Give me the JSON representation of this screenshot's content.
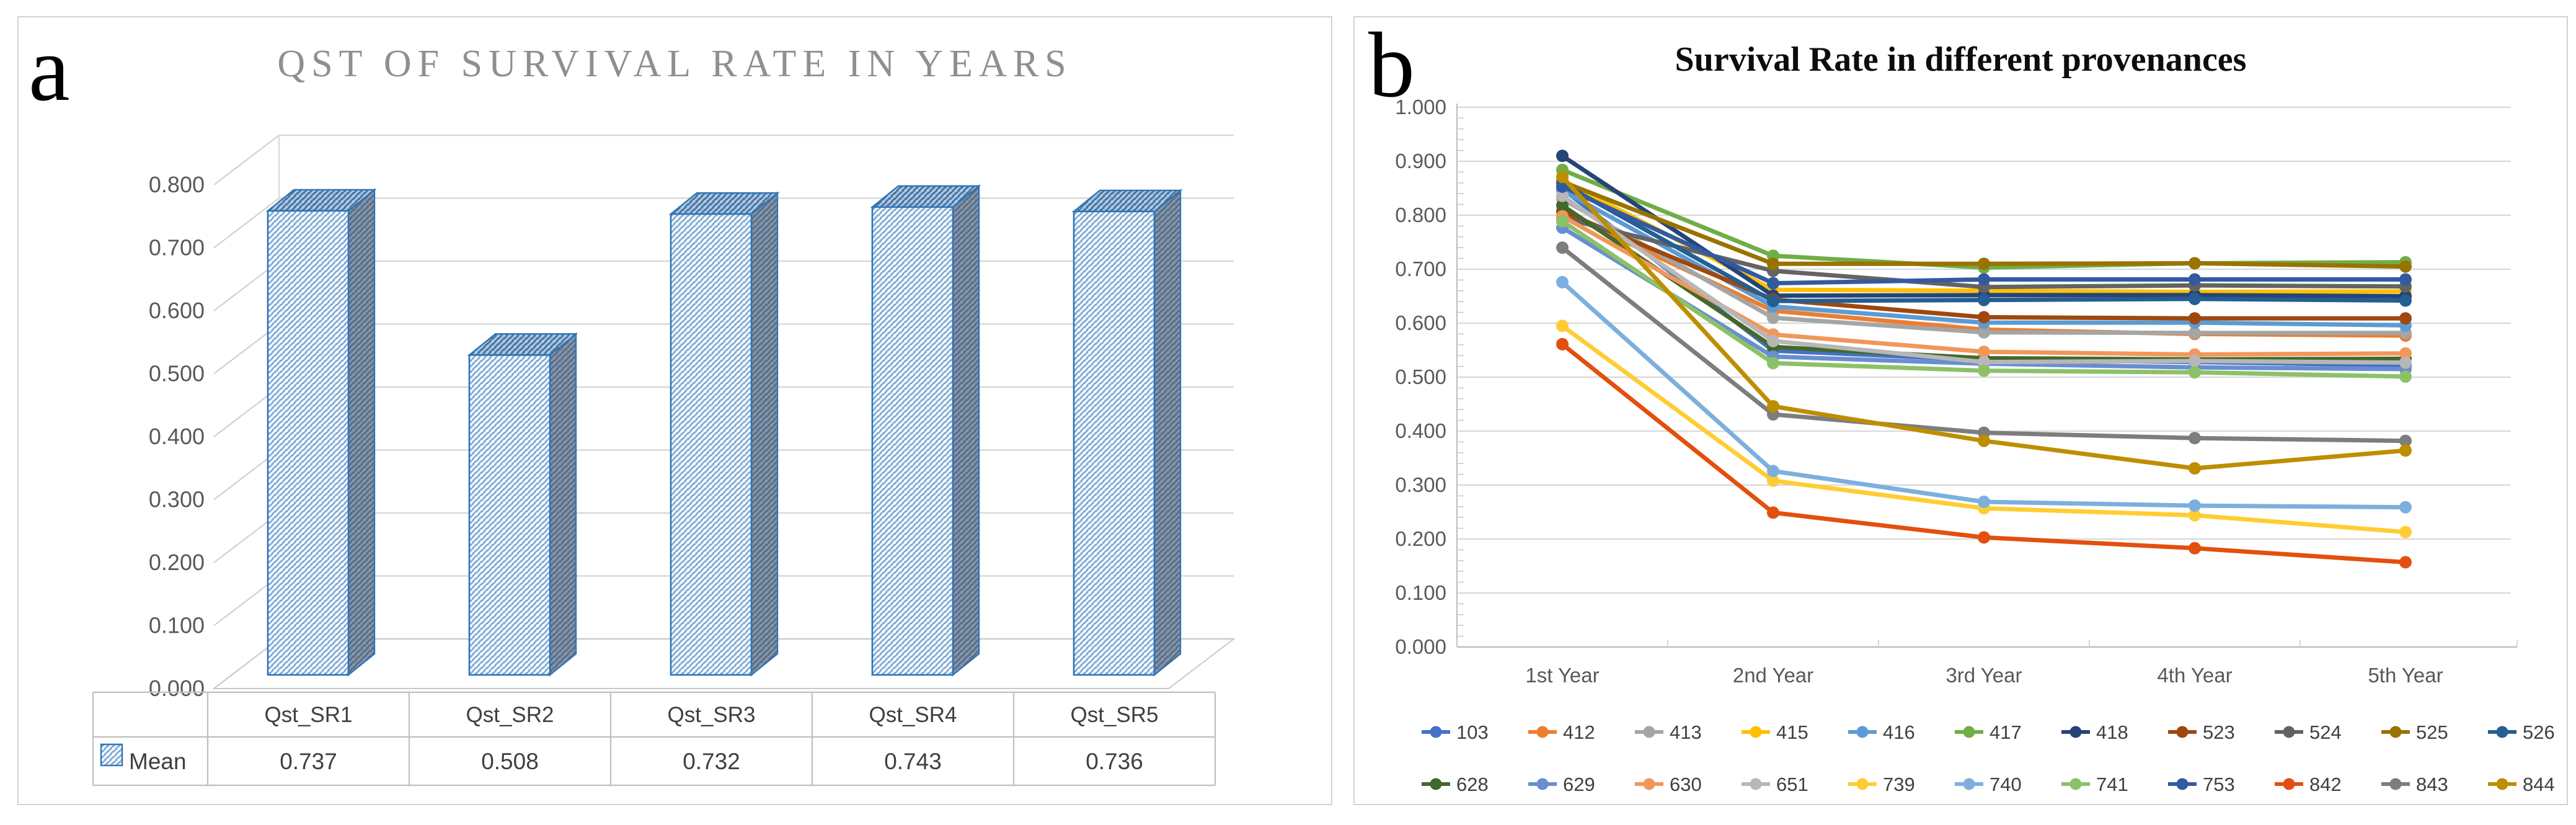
{
  "panel_a": {
    "label": "a"
  },
  "panel_b": {
    "label": "b"
  },
  "chart_data": [
    {
      "type": "bar",
      "variant": "3d-column-hatched",
      "title": "QST OF SURVIVAL RATE IN YEARS",
      "title_color": "#8F8F8F",
      "categories": [
        "Qst_SR1",
        "Qst_SR2",
        "Qst_SR3",
        "Qst_SR4",
        "Qst_SR5"
      ],
      "series": [
        {
          "name": "Mean",
          "values": [
            0.737,
            0.508,
            0.732,
            0.743,
            0.736
          ]
        }
      ],
      "ylim": [
        0,
        0.8
      ],
      "ytick_step": 0.1,
      "y_tick_labels": [
        "0.000",
        "0.100",
        "0.200",
        "0.300",
        "0.400",
        "0.500",
        "0.600",
        "0.700",
        "0.800"
      ],
      "bar_outline_color": "#2E75B6",
      "bar_fill_style": "diagonal-hatch",
      "grid": true,
      "legend_position": "data-table-below"
    },
    {
      "type": "line",
      "title": "Survival Rate in different provenances",
      "x": [
        "1st Year",
        "2nd Year",
        "3rd Year",
        "4th Year",
        "5th Year"
      ],
      "ylim": [
        0,
        1.0
      ],
      "ytick_step": 0.1,
      "y_tick_labels": [
        "0.000",
        "0.100",
        "0.200",
        "0.300",
        "0.400",
        "0.500",
        "0.600",
        "0.700",
        "0.800",
        "0.900",
        "1.000"
      ],
      "grid": true,
      "legend_position": "bottom-two-rows",
      "series": [
        {
          "name": "103",
          "color": "#4472C4",
          "values": [
            0.849,
            0.549,
            0.532,
            0.528,
            0.522
          ]
        },
        {
          "name": "412",
          "color": "#ED7D31",
          "values": [
            0.806,
            0.623,
            0.588,
            0.58,
            0.577
          ]
        },
        {
          "name": "413",
          "color": "#A5A5A5",
          "values": [
            0.83,
            0.61,
            0.583,
            0.582,
            0.582
          ]
        },
        {
          "name": "415",
          "color": "#FFC000",
          "values": [
            0.865,
            0.662,
            0.66,
            0.658,
            0.659
          ]
        },
        {
          "name": "416",
          "color": "#5B9BD5",
          "values": [
            0.846,
            0.631,
            0.601,
            0.601,
            0.596
          ]
        },
        {
          "name": "417",
          "color": "#70AD47",
          "values": [
            0.884,
            0.725,
            0.703,
            0.711,
            0.713
          ]
        },
        {
          "name": "418",
          "color": "#264478",
          "values": [
            0.91,
            0.651,
            0.652,
            0.652,
            0.65
          ]
        },
        {
          "name": "523",
          "color": "#9E480E",
          "values": [
            0.807,
            0.644,
            0.611,
            0.609,
            0.609
          ]
        },
        {
          "name": "524",
          "color": "#636363",
          "values": [
            0.795,
            0.697,
            0.667,
            0.67,
            0.668
          ]
        },
        {
          "name": "525",
          "color": "#997300",
          "values": [
            0.862,
            0.71,
            0.71,
            0.711,
            0.705
          ]
        },
        {
          "name": "526",
          "color": "#255E91",
          "values": [
            0.859,
            0.641,
            0.643,
            0.645,
            0.642
          ]
        },
        {
          "name": "628",
          "color": "#43682B",
          "values": [
            0.818,
            0.556,
            0.535,
            0.533,
            0.534
          ]
        },
        {
          "name": "629",
          "color": "#698ED0",
          "values": [
            0.777,
            0.538,
            0.525,
            0.518,
            0.515
          ]
        },
        {
          "name": "630",
          "color": "#F1975A",
          "values": [
            0.798,
            0.579,
            0.547,
            0.542,
            0.544
          ]
        },
        {
          "name": "651",
          "color": "#B7B7B7",
          "values": [
            0.836,
            0.567,
            0.528,
            0.53,
            0.527
          ]
        },
        {
          "name": "739",
          "color": "#FFCD33",
          "values": [
            0.595,
            0.308,
            0.257,
            0.244,
            0.213
          ]
        },
        {
          "name": "740",
          "color": "#7CAFDD",
          "values": [
            0.676,
            0.326,
            0.269,
            0.262,
            0.259
          ]
        },
        {
          "name": "741",
          "color": "#8CC168",
          "values": [
            0.789,
            0.526,
            0.512,
            0.509,
            0.501
          ]
        },
        {
          "name": "753",
          "color": "#335AA1",
          "values": [
            0.853,
            0.674,
            0.681,
            0.681,
            0.681
          ]
        },
        {
          "name": "842",
          "color": "#E2500F",
          "values": [
            0.561,
            0.249,
            0.203,
            0.183,
            0.157
          ]
        },
        {
          "name": "843",
          "color": "#7D7D7D",
          "values": [
            0.74,
            0.431,
            0.397,
            0.387,
            0.382
          ]
        },
        {
          "name": "844",
          "color": "#BD8E00",
          "values": [
            0.871,
            0.446,
            0.382,
            0.331,
            0.364
          ]
        }
      ]
    }
  ]
}
